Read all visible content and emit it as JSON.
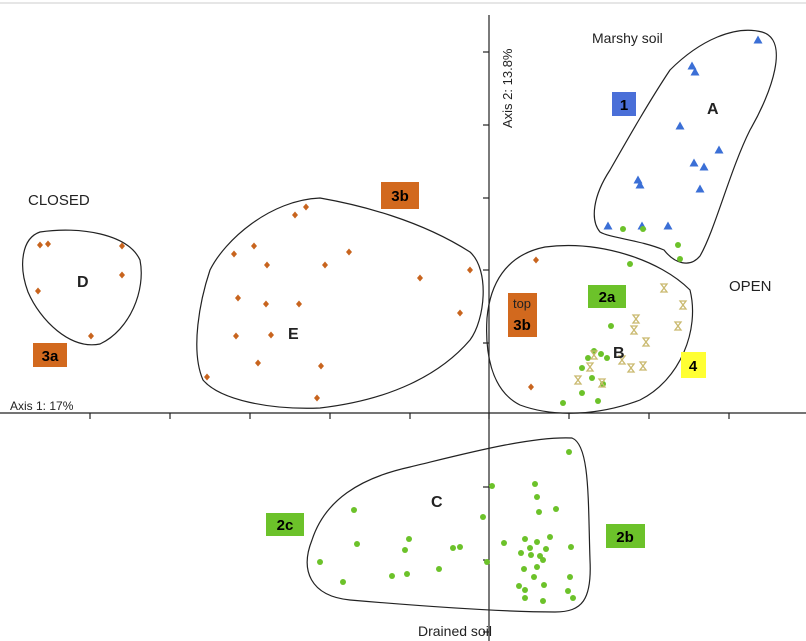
{
  "chart_data": {
    "type": "scatter",
    "xlabel": "Axis 1: 17%",
    "ylabel": "Axis 2: 13.8%",
    "annotations": {
      "top": "Marshy soil",
      "bottom": "Drained soil",
      "left": "CLOSED",
      "right": "OPEN"
    },
    "group_labels": [
      "A",
      "B",
      "C",
      "D",
      "E"
    ],
    "boxes": [
      {
        "id": "box-1",
        "text": "1",
        "color": "#4a6fd8",
        "text_color": "#000000"
      },
      {
        "id": "box-2a",
        "text": "2a",
        "color": "#6cc22a",
        "text_color": "#000000"
      },
      {
        "id": "box-2b",
        "text": "2b",
        "color": "#6cc22a",
        "text_color": "#000000"
      },
      {
        "id": "box-2c",
        "text": "2c",
        "color": "#6cc22a",
        "text_color": "#000000"
      },
      {
        "id": "box-3a",
        "text": "3a",
        "color": "#d2691e",
        "text_color": "#000000"
      },
      {
        "id": "box-3b",
        "text": "3b",
        "color": "#d2691e",
        "text_color": "#000000"
      },
      {
        "id": "box-top3b",
        "text": "3b",
        "pre": "top",
        "color": "#d2691e",
        "text_color": "#000000"
      },
      {
        "id": "box-4",
        "text": "4",
        "color": "#ffff33",
        "text_color": "#000000"
      }
    ],
    "series": [
      {
        "group": "1",
        "marker": "triangle",
        "color": "#3b6fd6",
        "points": [
          [
            758,
            40
          ],
          [
            692,
            66
          ],
          [
            695,
            72
          ],
          [
            680,
            126
          ],
          [
            719,
            150
          ],
          [
            694,
            163
          ],
          [
            704,
            167
          ],
          [
            638,
            180
          ],
          [
            640,
            185
          ],
          [
            700,
            189
          ],
          [
            608,
            226
          ],
          [
            642,
            226
          ],
          [
            668,
            226
          ]
        ]
      },
      {
        "group": "2",
        "marker": "circle",
        "color": "#6cc22a",
        "points": [
          [
            623,
            229
          ],
          [
            643,
            229
          ],
          [
            678,
            245
          ],
          [
            680,
            259
          ],
          [
            630,
            264
          ],
          [
            611,
            326
          ],
          [
            594,
            351
          ],
          [
            601,
            354
          ],
          [
            588,
            358
          ],
          [
            607,
            358
          ],
          [
            582,
            368
          ],
          [
            592,
            378
          ],
          [
            603,
            384
          ],
          [
            582,
            393
          ],
          [
            598,
            401
          ],
          [
            563,
            403
          ],
          [
            569,
            452
          ],
          [
            535,
            484
          ],
          [
            492,
            486
          ],
          [
            537,
            497
          ],
          [
            556,
            509
          ],
          [
            539,
            512
          ],
          [
            483,
            517
          ],
          [
            354,
            510
          ],
          [
            409,
            539
          ],
          [
            460,
            547
          ],
          [
            453,
            548
          ],
          [
            525,
            539
          ],
          [
            537,
            542
          ],
          [
            550,
            537
          ],
          [
            504,
            543
          ],
          [
            530,
            548
          ],
          [
            546,
            549
          ],
          [
            571,
            547
          ],
          [
            357,
            544
          ],
          [
            405,
            550
          ],
          [
            521,
            553
          ],
          [
            531,
            555
          ],
          [
            540,
            556
          ],
          [
            543,
            560
          ],
          [
            487,
            562
          ],
          [
            320,
            562
          ],
          [
            537,
            567
          ],
          [
            524,
            569
          ],
          [
            439,
            569
          ],
          [
            407,
            574
          ],
          [
            570,
            577
          ],
          [
            392,
            576
          ],
          [
            534,
            577
          ],
          [
            544,
            585
          ],
          [
            519,
            586
          ],
          [
            525,
            590
          ],
          [
            568,
            591
          ],
          [
            343,
            582
          ],
          [
            573,
            598
          ],
          [
            543,
            601
          ],
          [
            525,
            598
          ]
        ]
      },
      {
        "group": "3",
        "marker": "diamond",
        "color": "#c8641e",
        "points": [
          [
            306,
            207
          ],
          [
            295,
            215
          ],
          [
            254,
            246
          ],
          [
            234,
            254
          ],
          [
            349,
            252
          ],
          [
            267,
            265
          ],
          [
            325,
            265
          ],
          [
            470,
            270
          ],
          [
            536,
            260
          ],
          [
            420,
            278
          ],
          [
            238,
            298
          ],
          [
            266,
            304
          ],
          [
            299,
            304
          ],
          [
            460,
            313
          ],
          [
            236,
            336
          ],
          [
            271,
            335
          ],
          [
            258,
            363
          ],
          [
            321,
            366
          ],
          [
            207,
            377
          ],
          [
            317,
            398
          ],
          [
            531,
            387
          ],
          [
            40,
            245
          ],
          [
            48,
            244
          ],
          [
            122,
            246
          ],
          [
            122,
            275
          ],
          [
            38,
            291
          ],
          [
            91,
            336
          ]
        ]
      },
      {
        "group": "4",
        "marker": "hourglass",
        "color": "#c9b96e",
        "points": [
          [
            664,
            288
          ],
          [
            683,
            305
          ],
          [
            636,
            319
          ],
          [
            678,
            326
          ],
          [
            634,
            330
          ],
          [
            646,
            342
          ],
          [
            594,
            355
          ],
          [
            622,
            360
          ],
          [
            643,
            366
          ],
          [
            631,
            368
          ],
          [
            590,
            367
          ],
          [
            578,
            380
          ],
          [
            602,
            383
          ]
        ]
      }
    ]
  }
}
